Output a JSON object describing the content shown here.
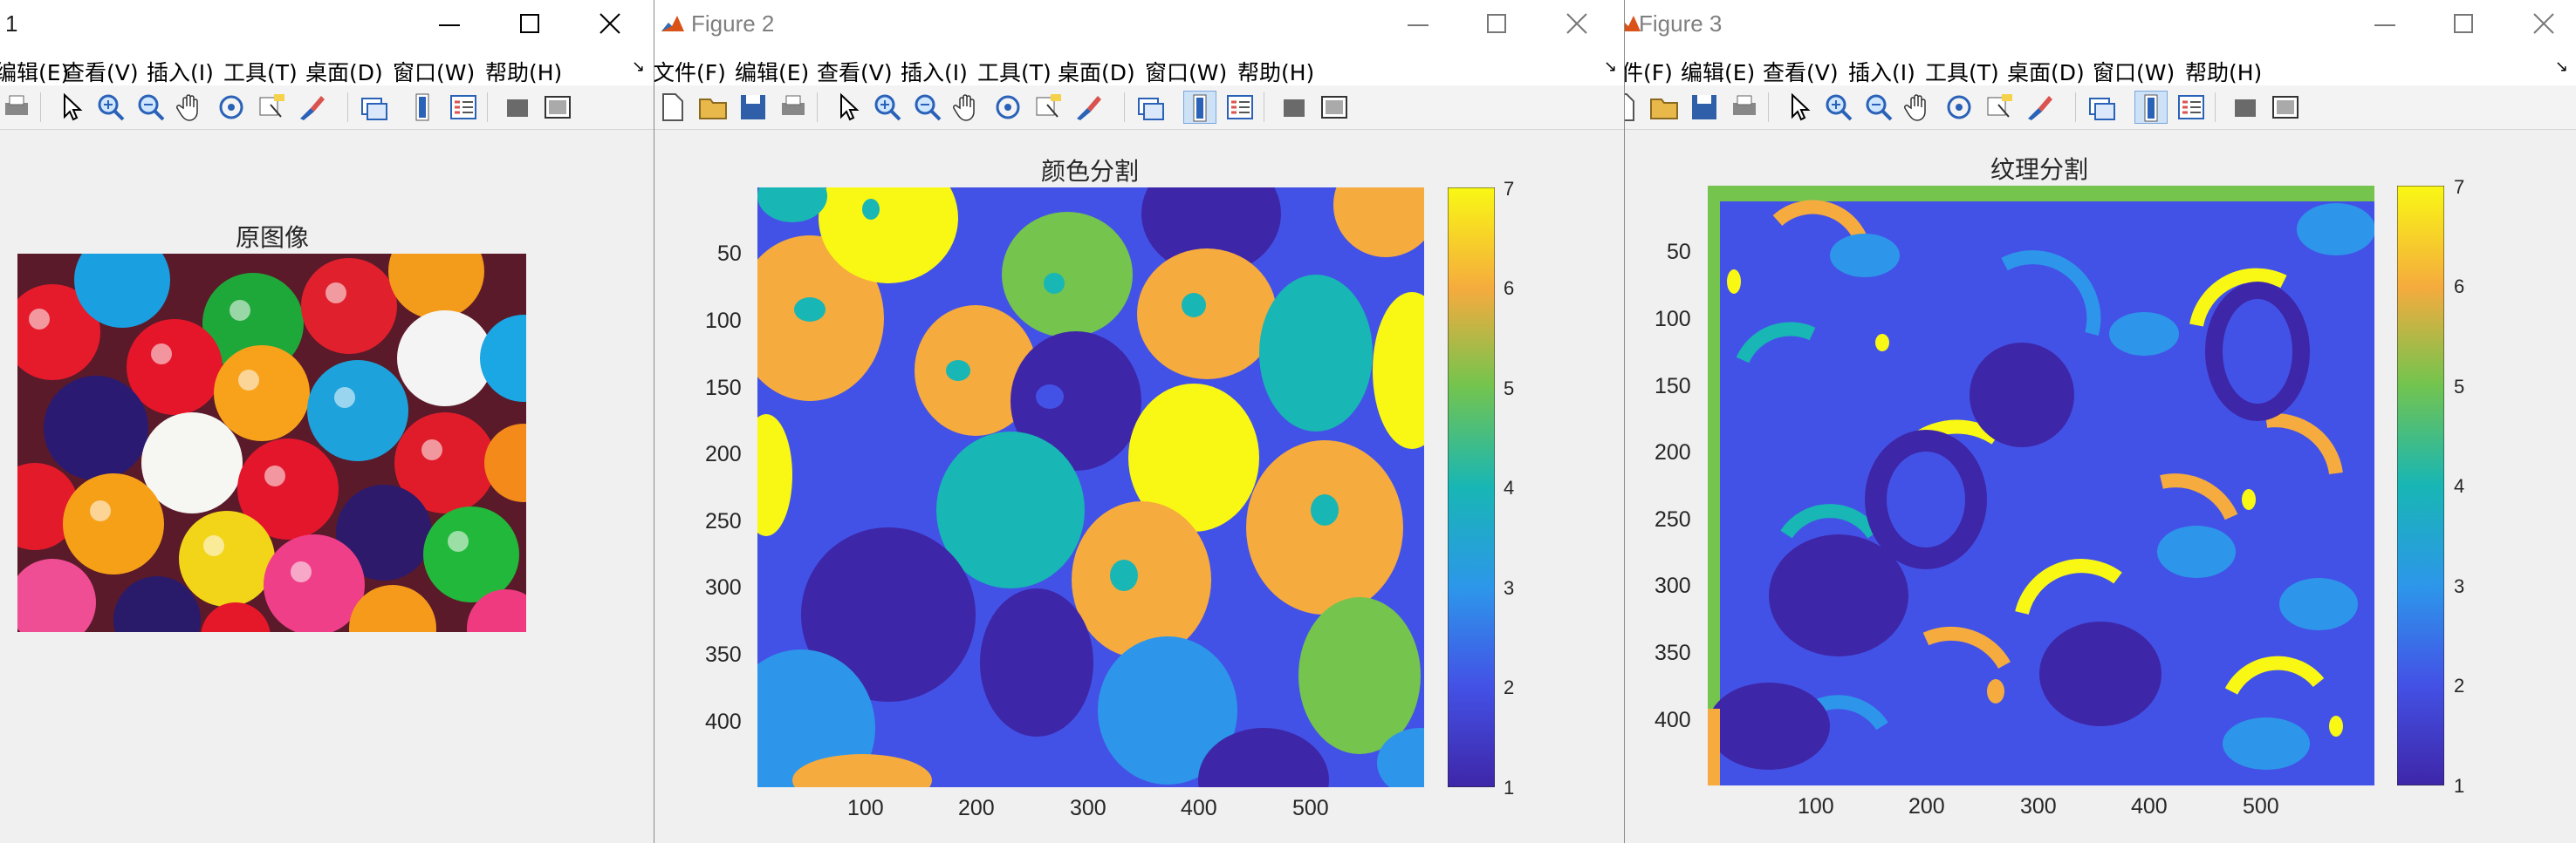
{
  "figure1": {
    "title": "1",
    "menu": [
      "编辑(E)",
      "查看(V)",
      "插入(I)",
      "工具(T)",
      "桌面(D)",
      "窗口(W)",
      "帮助(H)"
    ],
    "axes_title": "原图像"
  },
  "figure2": {
    "title": "Figure 2",
    "menu": [
      "文件(F)",
      "编辑(E)",
      "查看(V)",
      "插入(I)",
      "工具(T)",
      "桌面(D)",
      "窗口(W)",
      "帮助(H)"
    ],
    "axes_title": "颜色分割",
    "x_ticks": [
      "100",
      "200",
      "300",
      "400",
      "500"
    ],
    "y_ticks": [
      "50",
      "100",
      "150",
      "200",
      "250",
      "300",
      "350",
      "400"
    ],
    "colorbar_ticks": [
      "7",
      "6",
      "5",
      "4",
      "3",
      "2",
      "1"
    ]
  },
  "figure3": {
    "title": "Figure 3",
    "menu": [
      "件(F)",
      "编辑(E)",
      "查看(V)",
      "插入(I)",
      "工具(T)",
      "桌面(D)",
      "窗口(W)",
      "帮助(H)"
    ],
    "axes_title": "纹理分割",
    "x_ticks": [
      "100",
      "200",
      "300",
      "400",
      "500"
    ],
    "y_ticks": [
      "50",
      "100",
      "150",
      "200",
      "250",
      "300",
      "350",
      "400"
    ],
    "colorbar_ticks": [
      "7",
      "6",
      "5",
      "4",
      "3",
      "2",
      "1"
    ]
  },
  "colormap": {
    "c1": "#3e26a8",
    "c2": "#4352e6",
    "c3": "#2d96ea",
    "c4": "#18b6b5",
    "c5": "#74c44e",
    "c6": "#f5ab3e",
    "c7": "#f9f814"
  },
  "icons": [
    "new-file-icon",
    "open-folder-icon",
    "save-icon",
    "print-icon",
    "pointer-icon",
    "zoom-in-icon",
    "zoom-out-icon",
    "pan-hand-icon",
    "rotate-3d-icon",
    "data-cursor-icon",
    "brush-icon",
    "link-plot-icon",
    "colorbar-icon",
    "legend-icon",
    "hide-plot-tools-icon",
    "show-plot-tools-icon"
  ]
}
